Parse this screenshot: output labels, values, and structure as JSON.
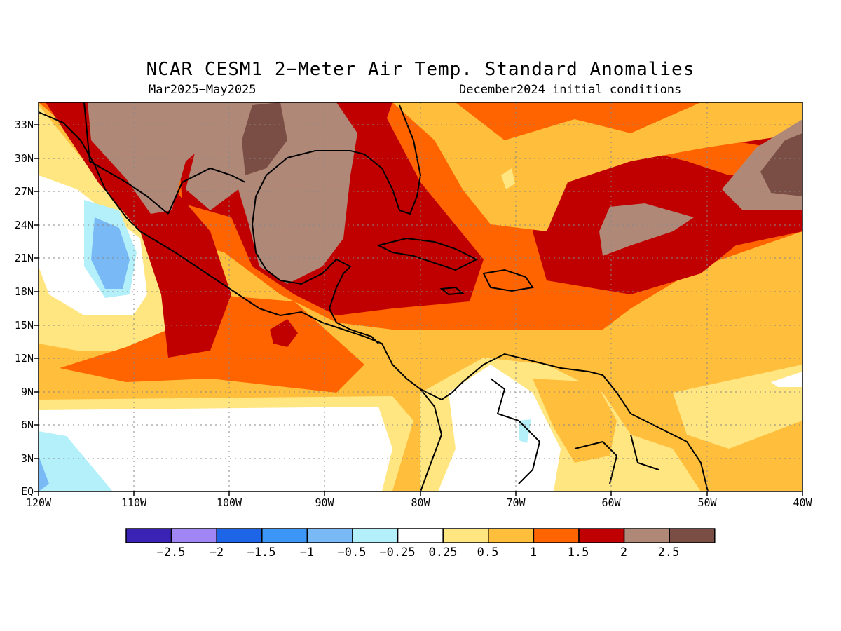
{
  "title": "NCAR_CESM1 2−Meter Air Temp. Standard Anomalies",
  "subtitle_left": "Mar2025−May2025",
  "subtitle_right": "December2024 initial conditions",
  "lat_labels": [
    "33N",
    "30N",
    "27N",
    "24N",
    "21N",
    "18N",
    "15N",
    "12N",
    "9N",
    "6N",
    "3N",
    "EQ"
  ],
  "lon_labels": [
    "120W",
    "110W",
    "100W",
    "90W",
    "80W",
    "70W",
    "60W",
    "50W",
    "40W"
  ],
  "colorbar": {
    "labels": [
      "−2.5",
      "−2",
      "−1.5",
      "−1",
      "−0.5",
      "−0.25",
      "0.25",
      "0.5",
      "1",
      "1.5",
      "2",
      "2.5"
    ],
    "colors": [
      "#3a22b4",
      "#9f86f4",
      "#1e64e6",
      "#3c96f5",
      "#78b9f6",
      "#b4f0fa",
      "#ffffff",
      "#ffe680",
      "#ffbe3c",
      "#ff6400",
      "#c00000",
      "#b08878",
      "#7a4e44"
    ]
  }
}
